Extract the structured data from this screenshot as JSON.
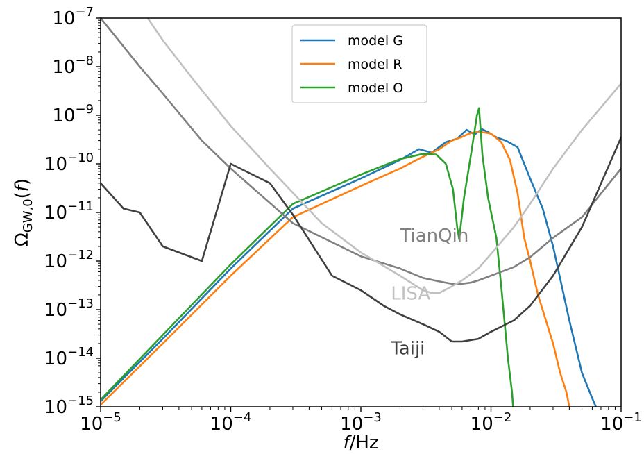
{
  "chart_data": {
    "type": "line",
    "xlabel": "f/Hz",
    "ylabel": "Ω_GW,0(f)",
    "xscale": "log",
    "yscale": "log",
    "xlim": [
      1e-05,
      0.1
    ],
    "ylim": [
      1e-15,
      1e-07
    ],
    "grid": false,
    "legend_position": "top-center",
    "x_ticks": [
      {
        "value": 1e-05,
        "base": "10",
        "exp": "−5"
      },
      {
        "value": 0.0001,
        "base": "10",
        "exp": "−4"
      },
      {
        "value": 0.001,
        "base": "10",
        "exp": "−3"
      },
      {
        "value": 0.01,
        "base": "10",
        "exp": "−2"
      },
      {
        "value": 0.1,
        "base": "10",
        "exp": "−1"
      }
    ],
    "y_ticks": [
      {
        "value": 1e-15,
        "base": "10",
        "exp": "−15"
      },
      {
        "value": 1e-14,
        "base": "10",
        "exp": "−14"
      },
      {
        "value": 1e-13,
        "base": "10",
        "exp": "−13"
      },
      {
        "value": 1e-12,
        "base": "10",
        "exp": "−12"
      },
      {
        "value": 1e-11,
        "base": "10",
        "exp": "−11"
      },
      {
        "value": 1e-10,
        "base": "10",
        "exp": "−10"
      },
      {
        "value": 1e-09,
        "base": "10",
        "exp": "−9"
      },
      {
        "value": 1e-08,
        "base": "10",
        "exp": "−8"
      },
      {
        "value": 1e-07,
        "base": "10",
        "exp": "−7"
      }
    ],
    "series": [
      {
        "name": "model G",
        "color": "#1f77b4",
        "legend": true,
        "x": [
          1e-05,
          3e-05,
          0.0001,
          0.0003,
          0.001,
          0.002,
          0.0028,
          0.0035,
          0.0045,
          0.0055,
          0.0065,
          0.0075,
          0.0085,
          0.0095,
          0.011,
          0.013,
          0.016,
          0.02,
          0.025,
          0.03,
          0.04,
          0.05,
          0.06,
          0.064
        ],
        "y": [
          1.3e-15,
          2.5e-14,
          7e-13,
          1.2e-11,
          5e-11,
          1.2e-10,
          2e-10,
          1.7e-10,
          2.8e-10,
          3.3e-10,
          5e-10,
          4e-10,
          5.2e-10,
          4.5e-10,
          3.5e-10,
          3e-10,
          2.2e-10,
          5e-11,
          1.2e-11,
          2e-12,
          6e-14,
          5e-15,
          1.5e-15,
          1e-15
        ]
      },
      {
        "name": "model R",
        "color": "#ff7f0e",
        "legend": true,
        "x": [
          1e-05,
          3e-05,
          0.0001,
          0.0003,
          0.001,
          0.002,
          0.003,
          0.004,
          0.005,
          0.006,
          0.007,
          0.008,
          0.01,
          0.012,
          0.014,
          0.016,
          0.018,
          0.02,
          0.023,
          0.027,
          0.03,
          0.034,
          0.038,
          0.04
        ],
        "y": [
          1.1e-15,
          2e-14,
          5e-13,
          8e-12,
          3.5e-11,
          8e-11,
          1.4e-10,
          2e-10,
          3e-10,
          3.6e-10,
          4.3e-10,
          4.6e-10,
          4.2e-10,
          2.8e-10,
          1.2e-10,
          2.5e-11,
          3e-12,
          1e-12,
          2e-13,
          5e-14,
          2e-14,
          5e-15,
          2e-15,
          1e-15
        ]
      },
      {
        "name": "model O",
        "color": "#2ca02c",
        "legend": true,
        "x": [
          1e-05,
          3e-05,
          0.0001,
          0.0003,
          0.001,
          0.002,
          0.003,
          0.0038,
          0.0045,
          0.0051,
          0.0055,
          0.0057,
          0.0062,
          0.007,
          0.0078,
          0.0081,
          0.0086,
          0.0095,
          0.011,
          0.012,
          0.0135,
          0.0145,
          0.0148
        ],
        "y": [
          1.4e-15,
          3e-14,
          8.5e-13,
          1.5e-11,
          6e-11,
          1.25e-10,
          1.6e-10,
          1.55e-10,
          1e-10,
          3e-11,
          5e-12,
          2.8e-12,
          2e-11,
          1.5e-10,
          1e-09,
          1.4e-09,
          1.5e-10,
          2e-11,
          3e-12,
          3e-13,
          1e-14,
          2e-15,
          1e-15
        ]
      },
      {
        "name": "TianQin",
        "color": "#808080",
        "legend": false,
        "x": [
          1e-05,
          2e-05,
          3e-05,
          6e-05,
          0.0001,
          0.0003,
          0.001,
          0.002,
          0.003,
          0.004,
          0.005,
          0.006,
          0.007,
          0.008,
          0.01,
          0.015,
          0.02,
          0.03,
          0.05,
          0.1
        ],
        "y": [
          1e-07,
          1e-08,
          2.8e-09,
          3e-10,
          8e-11,
          6e-12,
          1.25e-12,
          7e-13,
          4.5e-13,
          3.8e-13,
          3.4e-13,
          3.4e-13,
          3.6e-13,
          4e-13,
          5e-13,
          7.5e-13,
          1.2e-12,
          3e-12,
          8e-12,
          8e-11
        ]
      },
      {
        "name": "LISA",
        "color": "#c0c0c0",
        "legend": false,
        "x": [
          2.3e-05,
          3e-05,
          5e-05,
          0.0001,
          0.0002,
          0.0005,
          0.001,
          0.002,
          0.003,
          0.0035,
          0.004,
          0.005,
          0.006,
          0.008,
          0.01,
          0.015,
          0.02,
          0.03,
          0.05,
          0.1
        ],
        "y": [
          1e-07,
          3.5e-08,
          6e-09,
          6e-10,
          8e-11,
          6e-12,
          1.5e-12,
          5e-13,
          2.5e-13,
          2.2e-13,
          2.2e-13,
          3e-13,
          4e-13,
          7e-13,
          1.4e-12,
          5e-12,
          1.5e-11,
          8e-11,
          5e-10,
          4.5e-09
        ]
      },
      {
        "name": "Taiji",
        "color": "#404040",
        "legend": false,
        "x": [
          1e-05,
          1.5e-05,
          2e-05,
          3e-05,
          6e-05,
          0.0001,
          0.0002,
          0.0003,
          0.0006,
          0.001,
          0.0015,
          0.002,
          0.003,
          0.004,
          0.005,
          0.006,
          0.008,
          0.01,
          0.015,
          0.02,
          0.03,
          0.05,
          0.1
        ],
        "y": [
          4e-11,
          1.2e-11,
          1e-11,
          2e-12,
          1e-12,
          1e-10,
          4e-11,
          9e-12,
          5e-13,
          2.5e-13,
          1.2e-13,
          8e-14,
          5e-14,
          3.5e-14,
          2.2e-14,
          2.2e-14,
          2.5e-14,
          3.5e-14,
          6e-14,
          1.2e-13,
          5e-13,
          5e-12,
          3.5e-10
        ]
      }
    ],
    "legend": [
      {
        "label": "model G",
        "color": "#1f77b4"
      },
      {
        "label": "model R",
        "color": "#ff7f0e"
      },
      {
        "label": "model O",
        "color": "#2ca02c"
      }
    ],
    "annotations": [
      {
        "text": "TianQin",
        "x": 0.002,
        "y": 2.5e-12,
        "color": "#808080"
      },
      {
        "text": "LISA",
        "x": 0.0017,
        "y": 1.6e-13,
        "color": "#c0c0c0"
      },
      {
        "text": "Taiji",
        "x": 0.0017,
        "y": 1.2e-14,
        "color": "#404040"
      }
    ]
  }
}
